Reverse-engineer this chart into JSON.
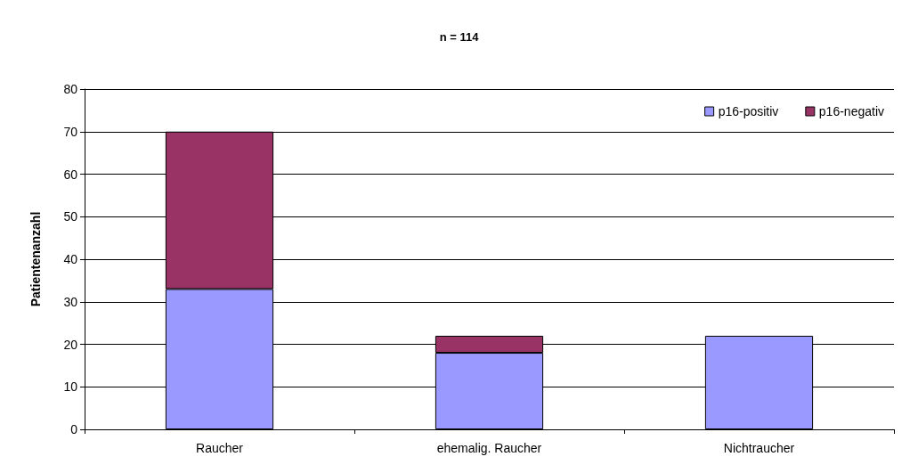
{
  "chart_data": {
    "type": "bar",
    "title": "n = 114",
    "ylabel": "Patientenanzahl",
    "categories": [
      "Raucher",
      "ehemalig. Raucher",
      "Nichtraucher"
    ],
    "stacked": true,
    "series": [
      {
        "name": "p16-positiv",
        "color": "#9999ff",
        "values": [
          33,
          18,
          22
        ]
      },
      {
        "name": "p16-negativ",
        "color": "#993366",
        "values": [
          37,
          4,
          0
        ]
      }
    ],
    "ylim": [
      0,
      80
    ],
    "yticks": [
      0,
      10,
      20,
      30,
      40,
      50,
      60,
      70,
      80
    ],
    "grid": "y",
    "legend": "top right"
  }
}
